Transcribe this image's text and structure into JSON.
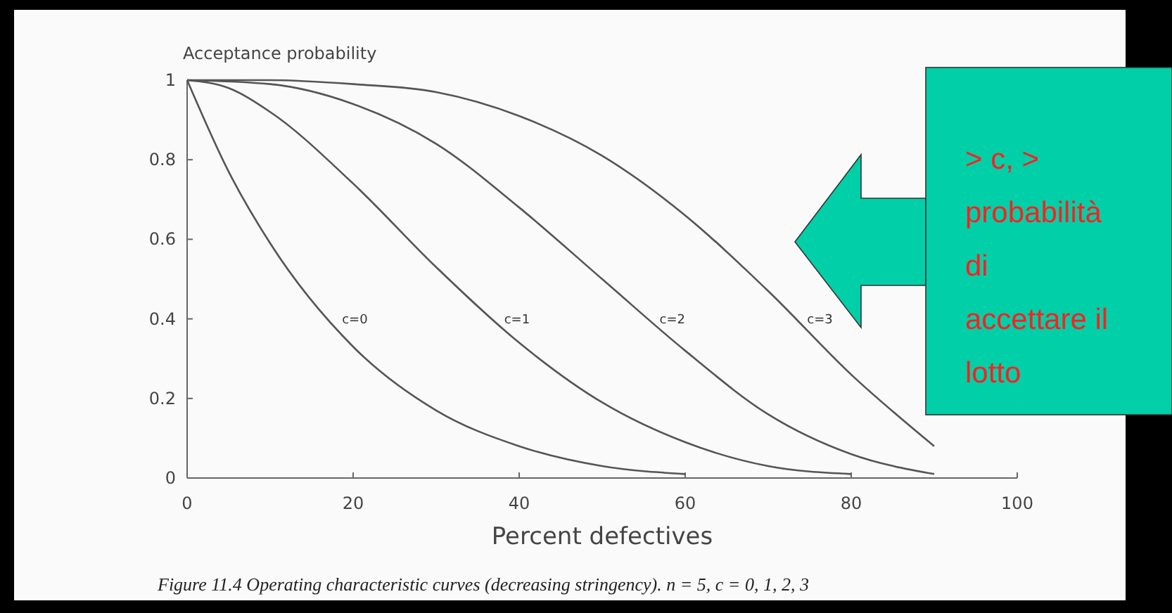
{
  "chart_data": {
    "type": "line",
    "ylabel": "Acceptance probability",
    "xlabel": "Percent defectives",
    "xlim": [
      0,
      100
    ],
    "xticks": [
      0,
      20,
      40,
      60,
      80,
      100
    ],
    "ylim": [
      0,
      1
    ],
    "yticks": [
      0,
      0.2,
      0.4,
      0.6,
      0.8,
      1
    ],
    "grid": false,
    "marker": "none",
    "line_style": "solid",
    "series": [
      {
        "name": "c=0",
        "color": "#555555",
        "x": [
          0,
          5,
          10,
          20,
          30,
          40,
          50,
          60
        ],
        "values": [
          1,
          0.77,
          0.59,
          0.33,
          0.17,
          0.08,
          0.03,
          0.01
        ]
      },
      {
        "name": "c=1",
        "color": "#555555",
        "x": [
          0,
          5,
          10,
          20,
          30,
          40,
          50,
          60,
          70,
          80
        ],
        "values": [
          1,
          0.98,
          0.92,
          0.74,
          0.53,
          0.34,
          0.19,
          0.09,
          0.03,
          0.01
        ]
      },
      {
        "name": "c=2",
        "color": "#555555",
        "x": [
          0,
          10,
          20,
          30,
          40,
          50,
          60,
          70,
          80,
          90
        ],
        "values": [
          1,
          0.99,
          0.94,
          0.84,
          0.68,
          0.5,
          0.32,
          0.16,
          0.06,
          0.01
        ]
      },
      {
        "name": "c=3",
        "color": "#555555",
        "x": [
          0,
          10,
          20,
          30,
          40,
          50,
          60,
          70,
          80,
          90
        ],
        "values": [
          1,
          1,
          0.99,
          0.97,
          0.91,
          0.81,
          0.66,
          0.47,
          0.26,
          0.08
        ]
      }
    ],
    "annotations": [
      "> c, >\nprobabilità\ndi\naccettare il\nlotto",
      "Figure 11.4 Operating characteristic curves (decreasing stringency). n = 5, c = 0, 1, 2, 3"
    ]
  }
}
